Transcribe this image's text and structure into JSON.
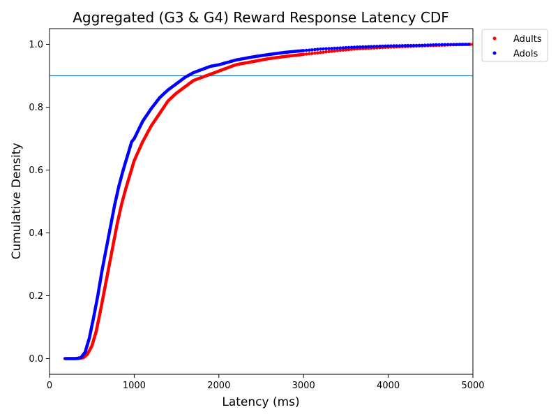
{
  "chart_data": {
    "type": "scatter",
    "title": "Aggregated (G3 & G4) Reward Response Latency CDF",
    "xlabel": "Latency (ms)",
    "ylabel": "Cumulative Density",
    "xlim": [
      0,
      5000
    ],
    "ylim": [
      -0.05,
      1.05
    ],
    "xticks": [
      "0",
      "1000",
      "2000",
      "3000",
      "4000",
      "5000"
    ],
    "yticks": [
      "0.0",
      "0.2",
      "0.4",
      "0.6",
      "0.8",
      "1.0"
    ],
    "grid": false,
    "legend_position": "outside-top-right",
    "reference_line": {
      "y": 0.9,
      "color": "#1f77b4"
    },
    "series": [
      {
        "name": "Adults",
        "color": "#ff0000",
        "x": [
          180,
          330,
          400,
          450,
          500,
          550,
          600,
          650,
          700,
          750,
          800,
          850,
          900,
          950,
          1000,
          1100,
          1200,
          1300,
          1400,
          1500,
          1600,
          1700,
          1800,
          1900,
          2000,
          2200,
          2400,
          2600,
          2800,
          3000,
          3200,
          3400,
          3600,
          3800,
          4000,
          4200,
          4400,
          4600,
          4800,
          5000
        ],
        "y": [
          0.0,
          0.0,
          0.003,
          0.015,
          0.04,
          0.085,
          0.15,
          0.22,
          0.29,
          0.36,
          0.43,
          0.49,
          0.54,
          0.585,
          0.63,
          0.69,
          0.74,
          0.78,
          0.82,
          0.845,
          0.865,
          0.885,
          0.895,
          0.905,
          0.915,
          0.935,
          0.945,
          0.955,
          0.962,
          0.968,
          0.974,
          0.98,
          0.985,
          0.988,
          0.991,
          0.993,
          0.995,
          0.997,
          0.999,
          1.0
        ]
      },
      {
        "name": "Adols",
        "color": "#0000ff",
        "x": [
          190,
          310,
          370,
          420,
          470,
          520,
          570,
          620,
          670,
          720,
          770,
          820,
          870,
          920,
          970,
          1000,
          1100,
          1200,
          1300,
          1400,
          1500,
          1600,
          1700,
          1800,
          1900,
          2000,
          2200,
          2400,
          2600,
          2800,
          3000,
          3200,
          3400,
          3600,
          3800,
          4000,
          4200,
          4400,
          4600,
          4950
        ],
        "y": [
          0.0,
          0.0,
          0.003,
          0.02,
          0.065,
          0.13,
          0.2,
          0.28,
          0.35,
          0.42,
          0.49,
          0.55,
          0.6,
          0.645,
          0.69,
          0.7,
          0.755,
          0.795,
          0.83,
          0.855,
          0.875,
          0.895,
          0.91,
          0.92,
          0.93,
          0.935,
          0.95,
          0.96,
          0.968,
          0.975,
          0.98,
          0.985,
          0.988,
          0.991,
          0.993,
          0.995,
          0.996,
          0.997,
          0.999,
          1.0
        ]
      }
    ]
  }
}
